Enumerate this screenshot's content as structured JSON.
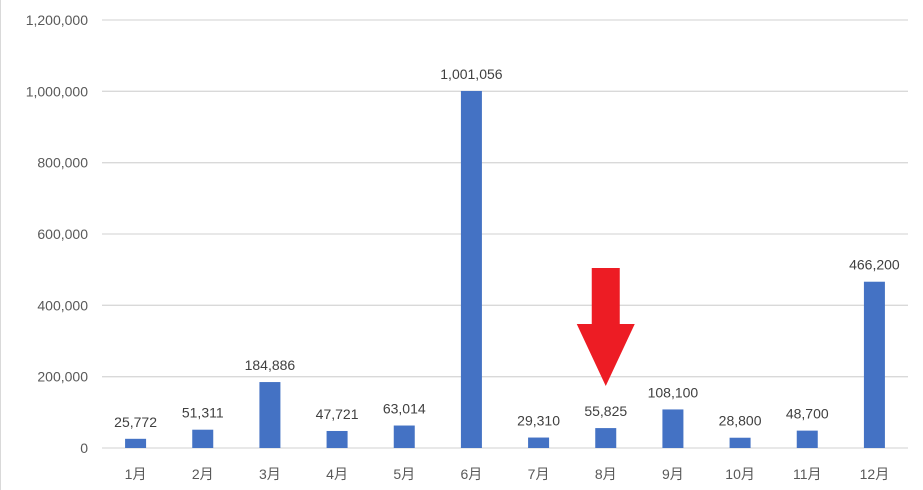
{
  "chart_data": {
    "type": "bar",
    "title": "",
    "xlabel": "",
    "ylabel": "",
    "categories": [
      "1月",
      "2月",
      "3月",
      "4月",
      "5月",
      "6月",
      "7月",
      "8月",
      "9月",
      "10月",
      "11月",
      "12月"
    ],
    "values": [
      25772,
      51311,
      184886,
      47721,
      63014,
      1001056,
      29310,
      55825,
      108100,
      28800,
      48700,
      466200
    ],
    "data_labels": [
      "25,772",
      "51,311",
      "184,886",
      "47,721",
      "63,014",
      "1,001,056",
      "29,310",
      "55,825",
      "108,100",
      "28,800",
      "48,700",
      "466,200"
    ],
    "ylim": [
      0,
      1200000
    ],
    "yticks": [
      0,
      200000,
      400000,
      600000,
      800000,
      1000000,
      1200000
    ],
    "ytick_labels": [
      "0",
      "200,000",
      "400,000",
      "600,000",
      "800,000",
      "1,000,000",
      "1,200,000"
    ],
    "grid": true,
    "legend": "none",
    "bar_color": "#4472c4",
    "grid_color": "#d9d9d9",
    "annotation": {
      "type": "arrow",
      "direction": "down",
      "target_category": "8月",
      "color": "#ed1c24"
    }
  }
}
